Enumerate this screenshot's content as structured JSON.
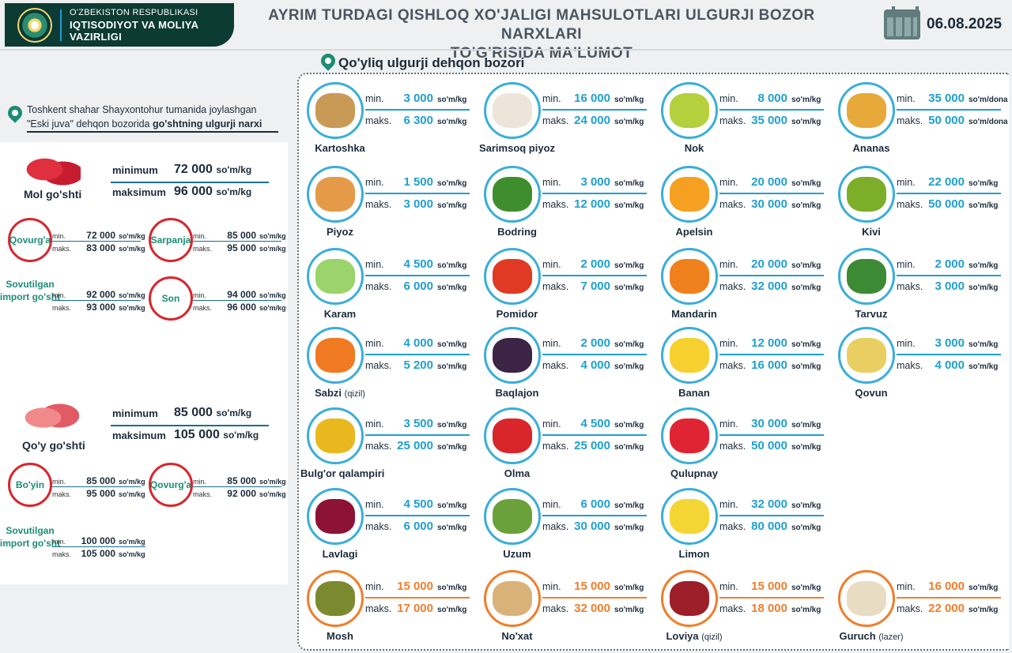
{
  "header": {
    "org_line1": "O'ZBEKISTON RESPUBLIKASI",
    "org_line2": "IQTISODIYOT VA MOLIYA",
    "org_line3": "VAZIRLIGI",
    "title_line1": "AYRIM TURDAGI QISHLOQ XO'JALIGI MAHSULOTLARI ULGURJI BOZOR NARXLARI",
    "title_line2": "TO'G'RISIDA MA'LUMOT",
    "date": "06.08.2025"
  },
  "left": {
    "location_line1": "Toshkent shahar Shayxontohur tumanida joylashgan",
    "location_line2_a": "\"Eski juva\" dehqon bozorida ",
    "location_line2_b": "go'shtning ulgurji narxi",
    "min_label": "minimum",
    "max_label": "maksimum",
    "unit": "so'm/kg",
    "cut_min": "min.",
    "cut_max": "maks.",
    "beef": {
      "name": "Mol go'shti",
      "min": "72 000",
      "max": "96 000",
      "cuts": [
        {
          "name": "Qovurg'a",
          "min": "72 000",
          "max": "83 000"
        },
        {
          "name": "Sarpanja",
          "min": "85 000",
          "max": "95 000"
        },
        {
          "name": "Sovutilgan import go'sht",
          "min": "92 000",
          "max": "93 000"
        },
        {
          "name": "Son",
          "min": "94 000",
          "max": "96 000"
        }
      ]
    },
    "lamb": {
      "name": "Qo'y go'shti",
      "min": "85 000",
      "max": "105 000",
      "cuts": [
        {
          "name": "Bo'yin",
          "min": "85 000",
          "max": "95 000"
        },
        {
          "name": "Qovurg'a",
          "min": "85 000",
          "max": "92 000"
        },
        {
          "name": "Sovutilgan import go'sht",
          "min": "100 000",
          "max": "105 000"
        }
      ]
    }
  },
  "market": {
    "title": "Qo'yliq ulgurji dehqon bozori",
    "min_label": "min.",
    "max_label": "maks.",
    "items": [
      {
        "name": "Kartoshka",
        "note": "",
        "min": "3 000",
        "max": "6 300",
        "unit": "so'm/kg",
        "color": "#c99a56"
      },
      {
        "name": "Sarimsoq piyoz",
        "note": "",
        "min": "16 000",
        "max": "24 000",
        "unit": "so'm/kg",
        "color": "#ede4da"
      },
      {
        "name": "Nok",
        "note": "",
        "min": "8 000",
        "max": "35 000",
        "unit": "so'm/kg",
        "color": "#b6cf3c"
      },
      {
        "name": "Ananas",
        "note": "",
        "min": "35 000",
        "max": "50 000",
        "unit": "so'm/dona",
        "color": "#e7a93a"
      },
      {
        "name": "Piyoz",
        "note": "",
        "min": "1 500",
        "max": "3 000",
        "unit": "so'm/kg",
        "color": "#e49a48"
      },
      {
        "name": "Bodring",
        "note": "",
        "min": "3 000",
        "max": "12 000",
        "unit": "so'm/kg",
        "color": "#3f8e2e"
      },
      {
        "name": "Apelsin",
        "note": "",
        "min": "20 000",
        "max": "30 000",
        "unit": "so'm/kg",
        "color": "#f5a020"
      },
      {
        "name": "Kivi",
        "note": "",
        "min": "22 000",
        "max": "50 000",
        "unit": "so'm/kg",
        "color": "#7cae2a"
      },
      {
        "name": "Karam",
        "note": "",
        "min": "4 500",
        "max": "6 000",
        "unit": "so'm/kg",
        "color": "#9ad46a"
      },
      {
        "name": "Pomidor",
        "note": "",
        "min": "2 000",
        "max": "7 000",
        "unit": "so'm/kg",
        "color": "#e03a25"
      },
      {
        "name": "Mandarin",
        "note": "",
        "min": "20 000",
        "max": "32 000",
        "unit": "so'm/kg",
        "color": "#f0801c"
      },
      {
        "name": "Tarvuz",
        "note": "",
        "min": "2 000",
        "max": "3 000",
        "unit": "so'm/kg",
        "color": "#3d8a35"
      },
      {
        "name": "Sabzi",
        "note": "(qizil)",
        "min": "4 000",
        "max": "5 200",
        "unit": "so'm/kg",
        "color": "#f07a22"
      },
      {
        "name": "Baqlajon",
        "note": "",
        "min": "2 000",
        "max": "4 000",
        "unit": "so'm/kg",
        "color": "#3b2446"
      },
      {
        "name": "Banan",
        "note": "",
        "min": "12 000",
        "max": "16 000",
        "unit": "so'm/kg",
        "color": "#f5d02e"
      },
      {
        "name": "Qovun",
        "note": "",
        "min": "3 000",
        "max": "4 000",
        "unit": "so'm/kg",
        "color": "#e9cf62"
      },
      {
        "name": "Bulg'or qalampiri",
        "note": "",
        "min": "3 500",
        "max": "25 000",
        "unit": "so'm/kg",
        "color": "#e8b81e"
      },
      {
        "name": "Olma",
        "note": "",
        "min": "4 500",
        "max": "25 000",
        "unit": "so'm/kg",
        "color": "#d8262b"
      },
      {
        "name": "Qulupnay",
        "note": "",
        "min": "30 000",
        "max": "50 000",
        "unit": "so'm/kg",
        "color": "#df2533"
      },
      {
        "name": "Lavlagi",
        "note": "",
        "min": "4 500",
        "max": "6 000",
        "unit": "so'm/kg",
        "color": "#8c1236"
      },
      {
        "name": "Uzum",
        "note": "",
        "min": "6 000",
        "max": "30 000",
        "unit": "so'm/kg",
        "color": "#6aa13a"
      },
      {
        "name": "Limon",
        "note": "",
        "min": "32 000",
        "max": "80 000",
        "unit": "so'm/kg",
        "color": "#f3d633"
      },
      {
        "name": "Mosh",
        "note": "",
        "min": "15 000",
        "max": "17 000",
        "unit": "so'm/kg",
        "color": "#7c8a2f"
      },
      {
        "name": "No'xat",
        "note": "",
        "min": "15 000",
        "max": "32 000",
        "unit": "so'm/kg",
        "color": "#d9b27a"
      },
      {
        "name": "Loviya",
        "note": "(qizil)",
        "min": "15 000",
        "max": "18 000",
        "unit": "so'm/kg",
        "color": "#9c1f2a"
      },
      {
        "name": "Guruch",
        "note": "(lazer)",
        "min": "16 000",
        "max": "22 000",
        "unit": "so'm/kg",
        "color": "#e8dcc3"
      }
    ]
  }
}
